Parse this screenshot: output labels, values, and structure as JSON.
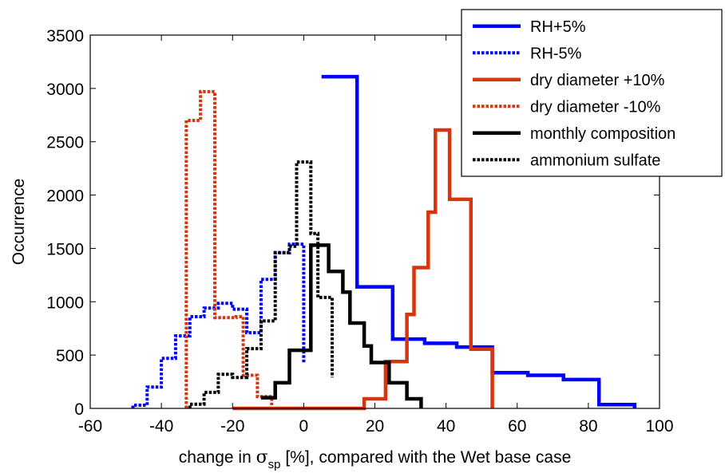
{
  "chart_data": {
    "type": "line",
    "xlabel_parts": [
      "change in ",
      "σ",
      "sp",
      " [%], compared with the Wet base case"
    ],
    "ylabel": "Occurrence",
    "xlim": [
      -60,
      100
    ],
    "ylim": [
      0,
      3500
    ],
    "x_ticks": [
      -60,
      -40,
      -20,
      0,
      20,
      40,
      60,
      80,
      100
    ],
    "y_ticks": [
      0,
      500,
      1000,
      1500,
      2000,
      2500,
      3000,
      3500
    ],
    "grid": false,
    "legend_position": "top-right",
    "series": [
      {
        "name": "RH+5%",
        "color": "#0000ff",
        "style": "solid",
        "points": [
          [
            5,
            3110
          ],
          [
            15,
            3110
          ],
          [
            15,
            1140
          ],
          [
            25,
            1140
          ],
          [
            25,
            650
          ],
          [
            34,
            650
          ],
          [
            34,
            610
          ],
          [
            43,
            610
          ],
          [
            43,
            575
          ],
          [
            53,
            575
          ],
          [
            53,
            335
          ],
          [
            63,
            335
          ],
          [
            63,
            310
          ],
          [
            73,
            310
          ],
          [
            73,
            270
          ],
          [
            83,
            270
          ],
          [
            83,
            35
          ],
          [
            93,
            35
          ],
          [
            93,
            0
          ]
        ]
      },
      {
        "name": "RH-5%",
        "color": "#0000ff",
        "style": "dotted",
        "points": [
          [
            -48,
            0
          ],
          [
            -48,
            30
          ],
          [
            -44,
            30
          ],
          [
            -44,
            200
          ],
          [
            -40,
            200
          ],
          [
            -40,
            470
          ],
          [
            -36,
            470
          ],
          [
            -36,
            680
          ],
          [
            -32,
            680
          ],
          [
            -32,
            860
          ],
          [
            -28,
            860
          ],
          [
            -28,
            940
          ],
          [
            -24,
            940
          ],
          [
            -24,
            985
          ],
          [
            -20,
            985
          ],
          [
            -20,
            930
          ],
          [
            -16,
            930
          ],
          [
            -16,
            710
          ],
          [
            -12,
            710
          ],
          [
            -12,
            1210
          ],
          [
            -8,
            1210
          ],
          [
            -8,
            1460
          ],
          [
            -4,
            1460
          ],
          [
            -4,
            1540
          ],
          [
            0,
            1540
          ],
          [
            0,
            420
          ]
        ]
      },
      {
        "name": "dry diameter +10%",
        "color": "#d63510",
        "style": "solid",
        "points": [
          [
            -20,
            0
          ],
          [
            17,
            0
          ],
          [
            17,
            90
          ],
          [
            23,
            90
          ],
          [
            23,
            440
          ],
          [
            29,
            440
          ],
          [
            29,
            880
          ],
          [
            31,
            880
          ],
          [
            31,
            1320
          ],
          [
            35,
            1320
          ],
          [
            35,
            1840
          ],
          [
            37,
            1840
          ],
          [
            37,
            2610
          ],
          [
            41,
            2610
          ],
          [
            41,
            1960
          ],
          [
            47,
            1960
          ],
          [
            47,
            555
          ],
          [
            53,
            555
          ],
          [
            53,
            0
          ]
        ]
      },
      {
        "name": "dry diameter -10%",
        "color": "#d63510",
        "style": "dotted",
        "points": [
          [
            -33,
            0
          ],
          [
            -33,
            2700
          ],
          [
            -29,
            2700
          ],
          [
            -29,
            2970
          ],
          [
            -25,
            2970
          ],
          [
            -25,
            850
          ],
          [
            -19,
            850
          ],
          [
            -19,
            860
          ],
          [
            -17,
            860
          ],
          [
            -17,
            310
          ],
          [
            -13,
            310
          ],
          [
            -13,
            110
          ],
          [
            -9,
            110
          ],
          [
            -9,
            30
          ]
        ]
      },
      {
        "name": "monthly composition",
        "color": "#000000",
        "style": "solid",
        "points": [
          [
            -12,
            100
          ],
          [
            -8,
            100
          ],
          [
            -8,
            240
          ],
          [
            -4,
            240
          ],
          [
            -4,
            545
          ],
          [
            2,
            545
          ],
          [
            2,
            1530
          ],
          [
            7,
            1530
          ],
          [
            7,
            1285
          ],
          [
            11,
            1285
          ],
          [
            11,
            1090
          ],
          [
            13,
            1090
          ],
          [
            13,
            800
          ],
          [
            17,
            800
          ],
          [
            17,
            585
          ],
          [
            19,
            585
          ],
          [
            19,
            430
          ],
          [
            24,
            430
          ],
          [
            24,
            240
          ],
          [
            29,
            240
          ],
          [
            29,
            90
          ],
          [
            33,
            90
          ],
          [
            33,
            0
          ]
        ]
      },
      {
        "name": "ammonium sulfate",
        "color": "#000000",
        "style": "dotted",
        "points": [
          [
            -32,
            0
          ],
          [
            -32,
            40
          ],
          [
            -28,
            40
          ],
          [
            -28,
            150
          ],
          [
            -24,
            150
          ],
          [
            -24,
            320
          ],
          [
            -20,
            320
          ],
          [
            -20,
            290
          ],
          [
            -16,
            290
          ],
          [
            -16,
            560
          ],
          [
            -12,
            560
          ],
          [
            -12,
            820
          ],
          [
            -8,
            820
          ],
          [
            -8,
            1460
          ],
          [
            -4,
            1460
          ],
          [
            -4,
            1520
          ],
          [
            -2,
            1520
          ],
          [
            -2,
            2310
          ],
          [
            2,
            2310
          ],
          [
            2,
            1640
          ],
          [
            4,
            1640
          ],
          [
            4,
            1040
          ],
          [
            8,
            1040
          ],
          [
            8,
            290
          ]
        ]
      }
    ]
  }
}
